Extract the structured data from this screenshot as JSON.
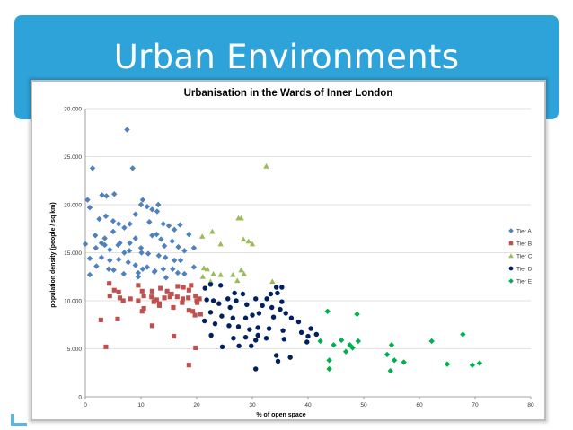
{
  "slide": {
    "title": "Urban Environments"
  },
  "chart_data": {
    "type": "scatter",
    "title": "Urbanisation in the Wards of Inner London",
    "xlabel": "% of open space",
    "ylabel": "population density (people / sq km)",
    "xlim": [
      0,
      80
    ],
    "ylim": [
      0,
      30000
    ],
    "x_ticks": [
      "0",
      "10",
      "20",
      "30",
      "40",
      "50",
      "60",
      "70",
      "80"
    ],
    "y_ticks": [
      "0",
      "5.000",
      "10.000",
      "15.000",
      "20.000",
      "25.000",
      "30.000"
    ],
    "grid": "horizontal",
    "legend_position": "right",
    "series": [
      {
        "name": "Tier A",
        "color": "#4f81bd",
        "marker": "diamond",
        "points": [
          [
            7.5,
            27800
          ],
          [
            1.3,
            23800
          ],
          [
            8.5,
            23800
          ],
          [
            0.4,
            20500
          ],
          [
            3,
            21000
          ],
          [
            3.8,
            20900
          ],
          [
            5.2,
            21100
          ],
          [
            10,
            20000
          ],
          [
            10.3,
            20500
          ],
          [
            12,
            19500
          ],
          [
            13.1,
            20000
          ],
          [
            11.1,
            19800
          ],
          [
            0.8,
            19700
          ],
          [
            2.5,
            18500
          ],
          [
            3.7,
            18800
          ],
          [
            5,
            18300
          ],
          [
            6,
            18000
          ],
          [
            7,
            17600
          ],
          [
            8,
            18000
          ],
          [
            9,
            19000
          ],
          [
            12.9,
            19300
          ],
          [
            11.5,
            18200
          ],
          [
            14,
            18000
          ],
          [
            15,
            17800
          ],
          [
            16,
            17400
          ],
          [
            17,
            17900
          ],
          [
            18.6,
            16900
          ],
          [
            1.8,
            16800
          ],
          [
            3.5,
            16500
          ],
          [
            5,
            17200
          ],
          [
            6.2,
            16000
          ],
          [
            7,
            15000
          ],
          [
            8,
            16000
          ],
          [
            9,
            16500
          ],
          [
            10,
            15500
          ],
          [
            12,
            16800
          ],
          [
            12.8,
            16900
          ],
          [
            13.6,
            16400
          ],
          [
            14.2,
            15700
          ],
          [
            15.6,
            16200
          ],
          [
            16.7,
            15600
          ],
          [
            17.8,
            15200
          ],
          [
            19.5,
            15500
          ],
          [
            0,
            15900
          ],
          [
            2.9,
            16000
          ],
          [
            1.9,
            15500
          ],
          [
            3.5,
            15800
          ],
          [
            4.4,
            15300
          ],
          [
            5.9,
            15800
          ],
          [
            7.9,
            15200
          ],
          [
            10.1,
            15000
          ],
          [
            11.3,
            14900
          ],
          [
            13.2,
            14700
          ],
          [
            14.4,
            14500
          ],
          [
            16,
            14200
          ],
          [
            17.1,
            14200
          ],
          [
            2.9,
            14500
          ],
          [
            0.8,
            14400
          ],
          [
            4.4,
            14200
          ],
          [
            6,
            14300
          ],
          [
            7.7,
            14000
          ],
          [
            9,
            13700
          ],
          [
            11.1,
            13500
          ],
          [
            12.5,
            13100
          ],
          [
            14,
            13300
          ],
          [
            15.7,
            13300
          ],
          [
            19.5,
            13500
          ],
          [
            2,
            13600
          ],
          [
            4.2,
            13300
          ],
          [
            5.1,
            13200
          ],
          [
            6.9,
            12800
          ],
          [
            9.5,
            12900
          ],
          [
            10.3,
            13300
          ],
          [
            12.4,
            13000
          ],
          [
            16.6,
            12900
          ],
          [
            17.8,
            12800
          ],
          [
            0.8,
            12700
          ],
          [
            9.5,
            12500
          ],
          [
            14.5,
            12400
          ]
        ]
      },
      {
        "name": "Tier B",
        "color": "#c0504d",
        "marker": "square",
        "points": [
          [
            4.3,
            11800
          ],
          [
            9.5,
            11600
          ],
          [
            10.2,
            11000
          ],
          [
            12,
            11000
          ],
          [
            13.5,
            11300
          ],
          [
            14.7,
            11000
          ],
          [
            15.5,
            10700
          ],
          [
            16.6,
            11500
          ],
          [
            17.6,
            11400
          ],
          [
            18.6,
            11100
          ],
          [
            19,
            11600
          ],
          [
            5.2,
            11100
          ],
          [
            6,
            10900
          ],
          [
            4.4,
            10500
          ],
          [
            6.2,
            10300
          ],
          [
            8.1,
            10200
          ],
          [
            10.5,
            10500
          ],
          [
            11.9,
            10400
          ],
          [
            12.8,
            10100
          ],
          [
            14.2,
            10300
          ],
          [
            15.2,
            10400
          ],
          [
            16.5,
            10400
          ],
          [
            17.5,
            10200
          ],
          [
            18.5,
            10300
          ],
          [
            19.8,
            10500
          ],
          [
            20.5,
            10200
          ],
          [
            6.8,
            10000
          ],
          [
            9.5,
            10000
          ],
          [
            12.3,
            9900
          ],
          [
            13.3,
            9700
          ],
          [
            17.4,
            9800
          ],
          [
            20.1,
            9800
          ],
          [
            20,
            10000
          ],
          [
            13.3,
            9500
          ],
          [
            15.8,
            9300
          ],
          [
            18.6,
            9000
          ],
          [
            19.3,
            8900
          ],
          [
            10.2,
            8900
          ],
          [
            10.5,
            9200
          ],
          [
            2.8,
            8000
          ],
          [
            5.8,
            8100
          ],
          [
            19.7,
            8500
          ],
          [
            20.7,
            8600
          ],
          [
            12,
            7400
          ],
          [
            15.9,
            6300
          ],
          [
            3.7,
            5200
          ],
          [
            19.8,
            5100
          ],
          [
            18.6,
            3300
          ]
        ]
      },
      {
        "name": "Tier C",
        "color": "#9bbb59",
        "marker": "triangle",
        "points": [
          [
            32.5,
            24000
          ],
          [
            27.5,
            18600
          ],
          [
            28,
            18600
          ],
          [
            22.8,
            17200
          ],
          [
            24.3,
            15900
          ],
          [
            21,
            16700
          ],
          [
            28.4,
            16400
          ],
          [
            29.3,
            16200
          ],
          [
            30,
            15900
          ],
          [
            21.3,
            13400
          ],
          [
            21.9,
            13300
          ],
          [
            23,
            12800
          ],
          [
            24.3,
            12700
          ],
          [
            28,
            13200
          ],
          [
            28.5,
            12800
          ],
          [
            26.5,
            12700
          ],
          [
            27.3,
            12100
          ],
          [
            33.6,
            12000
          ],
          [
            21.1,
            12500
          ],
          [
            22.5,
            12000
          ]
        ]
      },
      {
        "name": "Tier D",
        "color": "#002060",
        "marker": "circle",
        "points": [
          [
            22.5,
            11700
          ],
          [
            24.3,
            11600
          ],
          [
            21.5,
            11300
          ],
          [
            34.3,
            11400
          ],
          [
            35.3,
            11400
          ],
          [
            26.8,
            10800
          ],
          [
            28.3,
            10700
          ],
          [
            33.3,
            10700
          ],
          [
            34.5,
            10800
          ],
          [
            21.8,
            10100
          ],
          [
            23,
            10000
          ],
          [
            25.6,
            10200
          ],
          [
            27.1,
            10000
          ],
          [
            30.6,
            10200
          ],
          [
            32.6,
            10200
          ],
          [
            35.3,
            9900
          ],
          [
            24,
            9700
          ],
          [
            26,
            9300
          ],
          [
            29,
            9600
          ],
          [
            31.8,
            9500
          ],
          [
            33.5,
            9300
          ],
          [
            35,
            9100
          ],
          [
            36,
            8700
          ],
          [
            22.5,
            8800
          ],
          [
            24.5,
            8400
          ],
          [
            26.5,
            8200
          ],
          [
            28.8,
            8200
          ],
          [
            30,
            8500
          ],
          [
            31.2,
            8700
          ],
          [
            33.8,
            8300
          ],
          [
            37,
            8200
          ],
          [
            38.3,
            7800
          ],
          [
            21.4,
            7900
          ],
          [
            23.3,
            7600
          ],
          [
            25.8,
            7400
          ],
          [
            27.5,
            7300
          ],
          [
            29.5,
            7000
          ],
          [
            31,
            7200
          ],
          [
            33,
            7100
          ],
          [
            35.5,
            6900
          ],
          [
            40.5,
            7100
          ],
          [
            38.8,
            6700
          ],
          [
            22.6,
            6400
          ],
          [
            26.6,
            6100
          ],
          [
            28.8,
            6200
          ],
          [
            31,
            6400
          ],
          [
            32.5,
            6100
          ],
          [
            35.7,
            6000
          ],
          [
            40,
            6300
          ],
          [
            41.5,
            6500
          ],
          [
            30.6,
            5900
          ],
          [
            39.8,
            5700
          ],
          [
            24.6,
            5200
          ],
          [
            27.6,
            5300
          ],
          [
            29.8,
            5300
          ],
          [
            36.8,
            4100
          ],
          [
            34.3,
            4300
          ],
          [
            34.6,
            3700
          ],
          [
            30.6,
            2900
          ]
        ]
      },
      {
        "name": "Tier E",
        "color": "#00b050",
        "marker": "diamond",
        "points": [
          [
            43.5,
            8900
          ],
          [
            48.8,
            8600
          ],
          [
            67.8,
            6500
          ],
          [
            62.2,
            5800
          ],
          [
            44.6,
            5400
          ],
          [
            46,
            5900
          ],
          [
            47.5,
            5400
          ],
          [
            49,
            5800
          ],
          [
            48,
            5100
          ],
          [
            42.2,
            5800
          ],
          [
            55,
            5400
          ],
          [
            46.8,
            4700
          ],
          [
            54.2,
            4400
          ],
          [
            55.5,
            3800
          ],
          [
            57.2,
            3600
          ],
          [
            65,
            3400
          ],
          [
            69.5,
            3300
          ],
          [
            70.8,
            3500
          ],
          [
            43.8,
            3800
          ],
          [
            43.8,
            2900
          ],
          [
            54.8,
            2700
          ]
        ]
      }
    ]
  }
}
